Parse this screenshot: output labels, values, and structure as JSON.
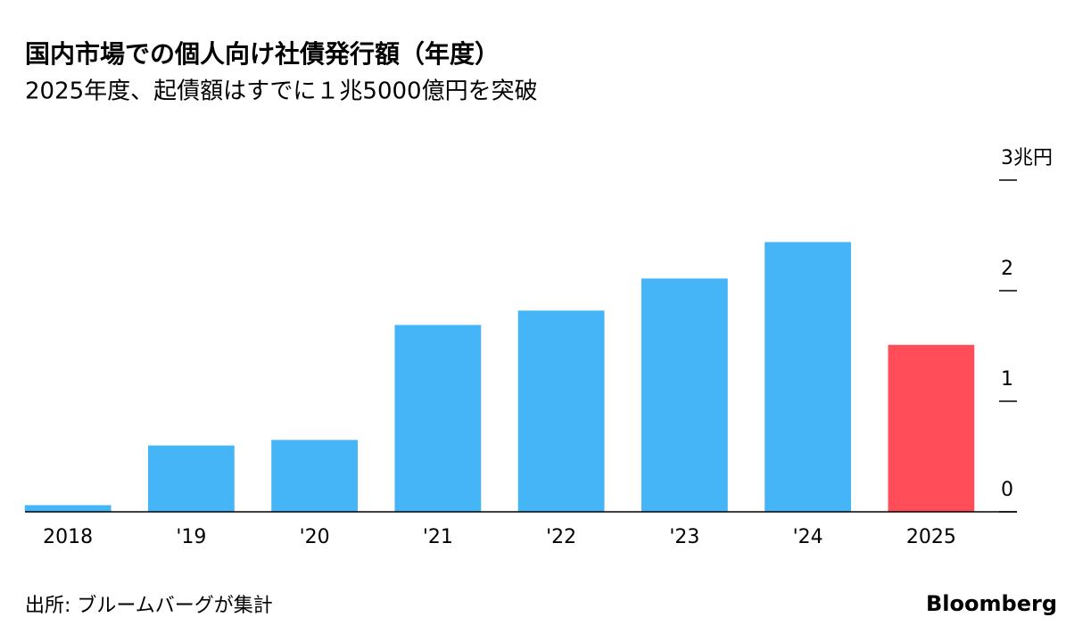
{
  "chart_data": {
    "type": "bar",
    "title": "国内市場での個人向け社債発行額（年度）",
    "subtitle": "2025年度、起債額はすでに１兆5000億円を突破",
    "categories": [
      "2018",
      "'19",
      "'20",
      "'21",
      "'22",
      "'23",
      "'24",
      "2025"
    ],
    "values": [
      0.06,
      0.6,
      0.65,
      1.69,
      1.82,
      2.11,
      2.44,
      1.51
    ],
    "colors": [
      "#45b5f7",
      "#45b5f7",
      "#45b5f7",
      "#45b5f7",
      "#45b5f7",
      "#45b5f7",
      "#45b5f7",
      "#ff4d5a"
    ],
    "ylim": [
      0,
      3
    ],
    "yticks": [
      0,
      1,
      2,
      {
        "value": 3,
        "label": "3兆円"
      }
    ],
    "source": "出所: ブルームバーグが集計",
    "brand": "Bloomberg"
  }
}
